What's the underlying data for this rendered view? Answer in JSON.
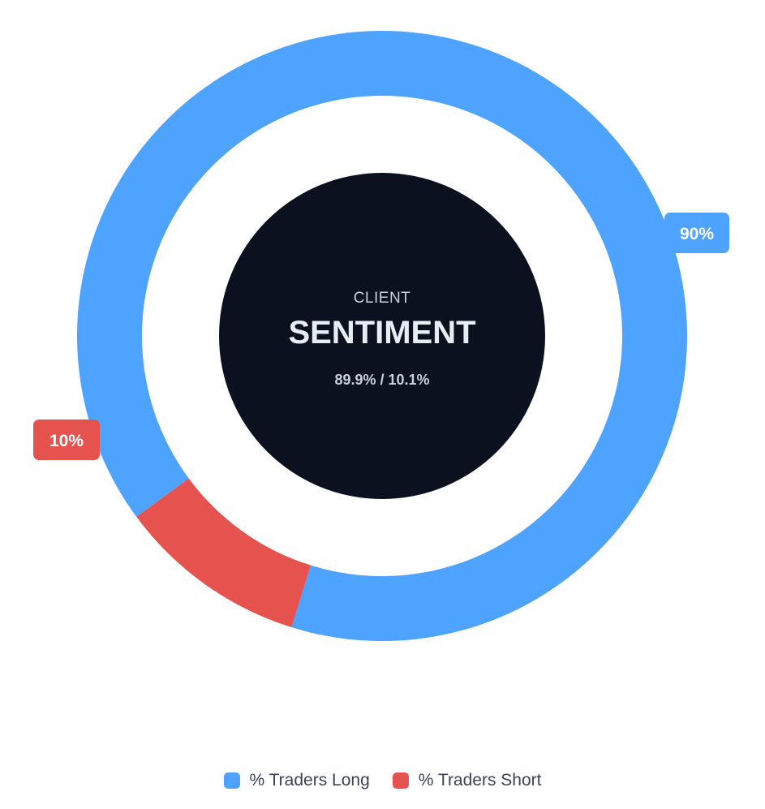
{
  "chart_data": {
    "type": "pie",
    "variant": "donut",
    "series": [
      {
        "name": "% Traders Long",
        "value": 89.9,
        "label": "90%",
        "color": "#4da3fd"
      },
      {
        "name": "% Traders Short",
        "value": 10.1,
        "label": "10%",
        "color": "#e6534f"
      }
    ],
    "center": {
      "subtitle": "CLIENT",
      "title": "SENTIMENT",
      "values_text": "89.9% / 10.1%"
    },
    "legend_position": "bottom"
  }
}
